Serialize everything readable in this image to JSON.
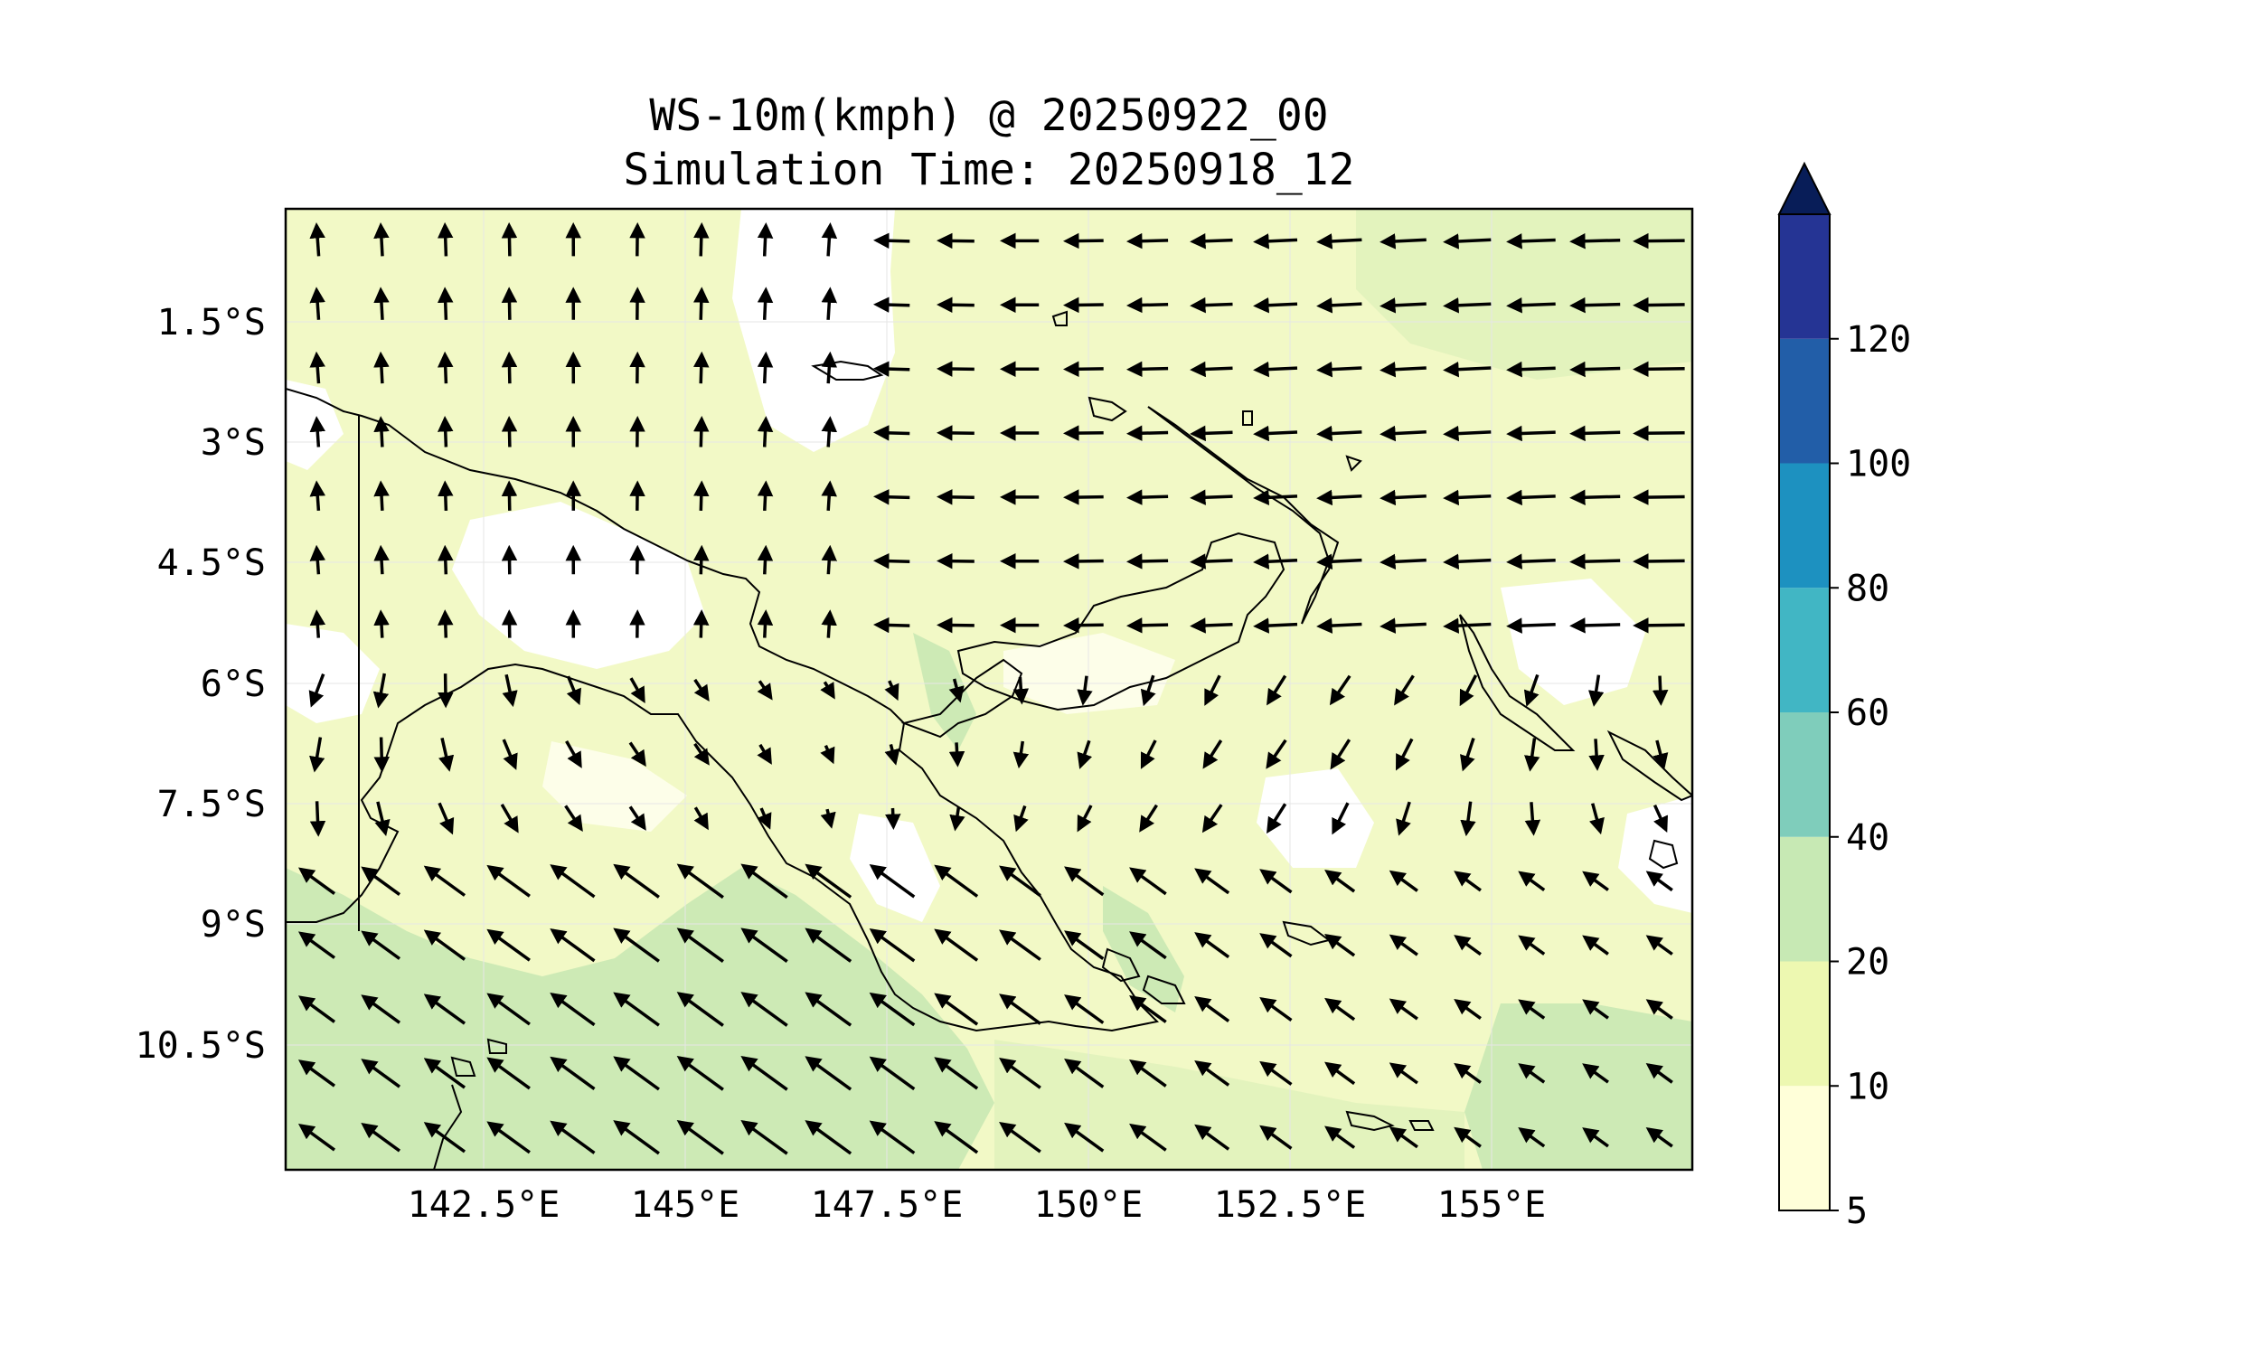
{
  "title": {
    "line1": "WS-10m(kmph) @ 20250922_00",
    "line2": "Simulation Time: 20250918_12"
  },
  "map": {
    "lon_range": [
      140.0,
      157.5
    ],
    "lat_range": [
      -12.0,
      0.0
    ],
    "lon_ticks": [
      142.5,
      145,
      147.5,
      150,
      152.5,
      155
    ],
    "lon_tick_labels": [
      "142.5°E",
      "145°E",
      "147.5°E",
      "150°E",
      "152.5°E",
      "155°E"
    ],
    "lat_ticks": [
      -1.5,
      -3,
      -4.5,
      -6,
      -7.5,
      -9,
      -10.5
    ],
    "lat_tick_labels": [
      "1.5°S",
      "3°S",
      "4.5°S",
      "6°S",
      "7.5°S",
      "9°S",
      "10.5°S"
    ],
    "variable": "10 m wind speed",
    "units": "kmph"
  },
  "colorbar": {
    "levels": [
      5,
      10,
      20,
      40,
      60,
      80,
      100,
      120
    ],
    "tick_labels": [
      "5",
      "10",
      "20",
      "40",
      "60",
      "80",
      "100",
      "120"
    ],
    "colors": [
      "#ffffd9",
      "#edf8b1",
      "#c7e9b4",
      "#7fcdbb",
      "#41b6c4",
      "#1d91c0",
      "#225ea8",
      "#253494"
    ],
    "extend_color": "#081d58",
    "extend": "max"
  }
}
